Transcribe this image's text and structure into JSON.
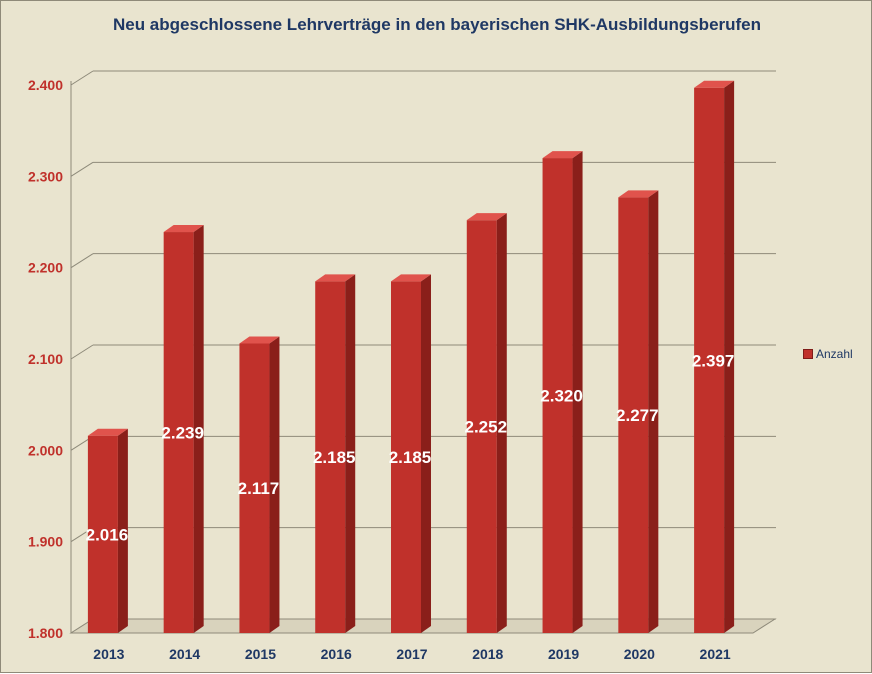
{
  "chart_data": {
    "type": "bar",
    "title": "Neu abgeschlossene Lehrverträge in den bayerischen SHK-Ausbildungsberufen",
    "xlabel": "",
    "ylabel": "",
    "categories": [
      "2013",
      "2014",
      "2015",
      "2016",
      "2017",
      "2018",
      "2019",
      "2020",
      "2021"
    ],
    "series": [
      {
        "name": "Anzahl",
        "values": [
          2016,
          2239,
          2117,
          2185,
          2185,
          2252,
          2320,
          2277,
          2397
        ],
        "labels": [
          "2.016",
          "2.239",
          "2.117",
          "2.185",
          "2.185",
          "2.252",
          "2.320",
          "2.277",
          "2.397"
        ]
      }
    ],
    "ylim": [
      1800,
      2400
    ],
    "yticks": [
      1800,
      1900,
      2000,
      2100,
      2200,
      2300,
      2400
    ],
    "ytick_labels": [
      "1.800",
      "1.900",
      "2.000",
      "2.100",
      "2.200",
      "2.300",
      "2.400"
    ],
    "grid": true,
    "legend_position": "right",
    "three_d": true,
    "colors": {
      "bar": "#c0312b",
      "bar_top": "#e0534c",
      "bar_side": "#8a1f1a",
      "background": "#e9e4cf",
      "title": "#1f3864",
      "ytick": "#c0312b",
      "xtick": "#1f3864",
      "data_label": "#ffffff"
    }
  }
}
